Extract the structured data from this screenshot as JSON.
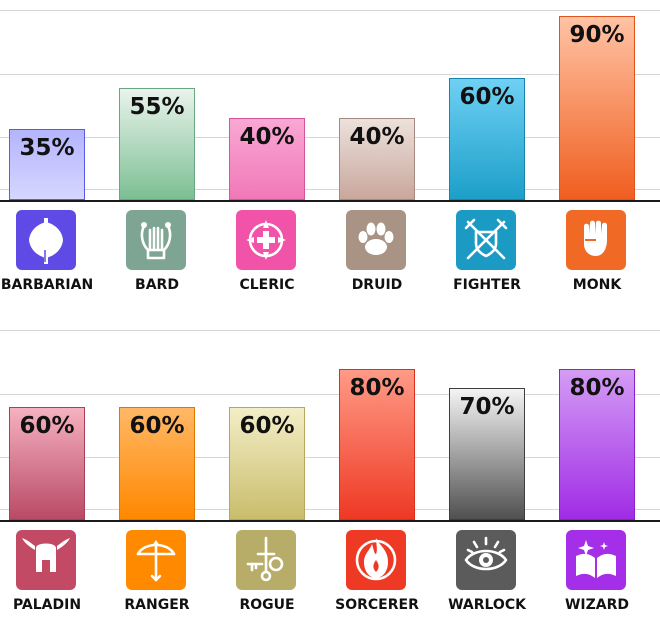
{
  "chart_data": [
    {
      "type": "bar",
      "categories": [
        "BARBARIAN",
        "BARD",
        "CLERIC",
        "DRUID",
        "FIGHTER",
        "MONK"
      ],
      "values": [
        35,
        55,
        40,
        40,
        60,
        90
      ],
      "value_labels": [
        "35%",
        "55%",
        "40%",
        "40%",
        "60%",
        "90%"
      ],
      "ylim": [
        0,
        100
      ],
      "grid": true,
      "bars": [
        {
          "top": "#b4b4ff",
          "bottom": "#d6d6ff",
          "border": "#5b5be6"
        },
        {
          "top": "#e9f3ec",
          "bottom": "#7cbf93",
          "border": "#6aa683"
        },
        {
          "top": "#f9a8d4",
          "bottom": "#f178b8",
          "border": "#d4559c"
        },
        {
          "top": "#ece1dc",
          "bottom": "#c9a79d",
          "border": "#a78a7f"
        },
        {
          "top": "#6fd0f4",
          "bottom": "#1c9fc9",
          "border": "#1585ad"
        },
        {
          "top": "#ffc3a4",
          "bottom": "#f05e20",
          "border": "#e0531a"
        }
      ],
      "icons": [
        {
          "name": "axe-icon",
          "color": "#5f4ae6"
        },
        {
          "name": "lyre-icon",
          "color": "#7ea593"
        },
        {
          "name": "holy-cross-icon",
          "color": "#f053a8"
        },
        {
          "name": "paw-icon",
          "color": "#a89384"
        },
        {
          "name": "crossed-swords-shield-icon",
          "color": "#1b9ac4"
        },
        {
          "name": "fist-icon",
          "color": "#f06a25"
        }
      ]
    },
    {
      "type": "bar",
      "categories": [
        "PALADIN",
        "RANGER",
        "ROGUE",
        "SORCERER",
        "WARLOCK",
        "WIZARD"
      ],
      "values": [
        60,
        60,
        60,
        80,
        70,
        80
      ],
      "value_labels": [
        "60%",
        "60%",
        "60%",
        "80%",
        "70%",
        "80%"
      ],
      "ylim": [
        0,
        100
      ],
      "grid": true,
      "bars": [
        {
          "top": "#f6b1c0",
          "bottom": "#b94a66",
          "border": "#a9405a"
        },
        {
          "top": "#ffb866",
          "bottom": "#ff8800",
          "border": "#e07800"
        },
        {
          "top": "#f3eec6",
          "bottom": "#c9bd6c",
          "border": "#b3a85e"
        },
        {
          "top": "#ff9a86",
          "bottom": "#ee3924",
          "border": "#d9311d"
        },
        {
          "top": "#f4f4f4",
          "bottom": "#505050",
          "border": "#3e3e3e"
        },
        {
          "top": "#d49cf5",
          "bottom": "#a02ce6",
          "border": "#8c22cc"
        }
      ],
      "icons": [
        {
          "name": "winged-helmet-icon",
          "color": "#c24a65"
        },
        {
          "name": "bow-arrow-icon",
          "color": "#ff8a00"
        },
        {
          "name": "dagger-key-icon",
          "color": "#b8ad68"
        },
        {
          "name": "flame-icon",
          "color": "#ee3a24"
        },
        {
          "name": "eye-icon",
          "color": "#5b5b5b"
        },
        {
          "name": "spellbook-icon",
          "color": "#a52ee8"
        }
      ]
    }
  ]
}
